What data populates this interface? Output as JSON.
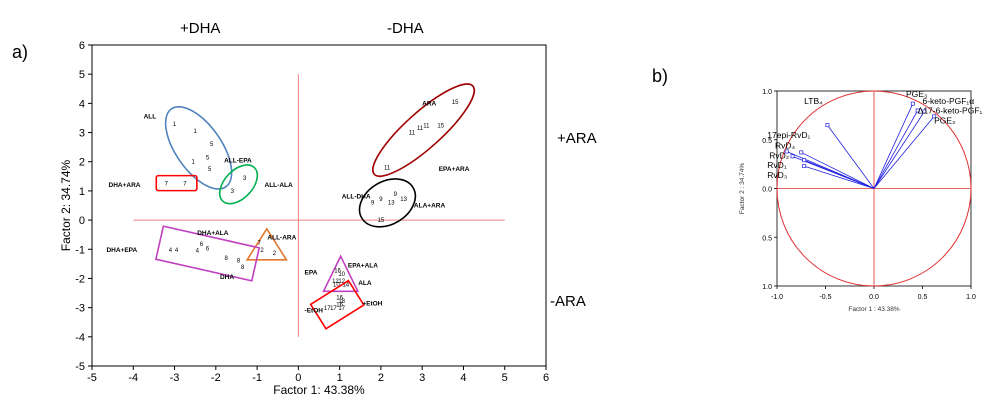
{
  "chart_data": [
    {
      "panel_label": "a)",
      "type": "scatter",
      "xlabel": "Factor 1: 43.38%",
      "ylabel": "Factor 2: 34.74%",
      "xlim": [
        -5,
        6
      ],
      "ylim": [
        -5,
        6
      ],
      "x_ticks": [
        "-5",
        "-4",
        "-3",
        "-2",
        "-1",
        "0",
        "1",
        "2",
        "3",
        "4",
        "5",
        "6"
      ],
      "y_ticks": [
        "-5",
        "-4",
        "-3",
        "-2",
        "-1",
        "0",
        "1",
        "2",
        "3",
        "4",
        "5",
        "6"
      ],
      "annotations": {
        "left_top": "+DHA",
        "right_top": "-DHA",
        "right_upper": "+ARA",
        "right_lower": "-ARA"
      },
      "groups": [
        {
          "label": "ALL",
          "label_x": -3.75,
          "label_y": 3.55,
          "color": "#4f81bd",
          "shape": "ellipse",
          "points": [
            {
              "x": -3.0,
              "y": 3.3,
              "n": "1"
            },
            {
              "x": -2.5,
              "y": 3.05,
              "n": "1"
            },
            {
              "x": -2.1,
              "y": 2.6,
              "n": "5"
            },
            {
              "x": -2.2,
              "y": 2.15,
              "n": "5"
            },
            {
              "x": -2.55,
              "y": 2.0,
              "n": "1"
            },
            {
              "x": -2.15,
              "y": 1.75,
              "n": "5"
            }
          ]
        },
        {
          "label": "ALL-EPA",
          "label_x": -1.8,
          "label_y": 2.05,
          "color": null,
          "shape": null,
          "points": []
        },
        {
          "label": "ALL-ALA",
          "label_x": -0.82,
          "label_y": 1.2,
          "color": "#00b050",
          "shape": "ellipse",
          "points": [
            {
              "x": -1.3,
              "y": 1.45,
              "n": "3"
            },
            {
              "x": -1.6,
              "y": 1.0,
              "n": "3"
            }
          ]
        },
        {
          "label": "DHA+ARA",
          "label_x": -4.6,
          "label_y": 1.2,
          "color": "#ff0000",
          "shape": "rect",
          "points": [
            {
              "x": -3.2,
              "y": 1.25,
              "n": "7"
            },
            {
              "x": -2.75,
              "y": 1.25,
              "n": "7"
            }
          ]
        },
        {
          "label": "ALL-ARA",
          "label_x": -0.75,
          "label_y": -0.6,
          "color": "#e2782d",
          "shape": "triangle",
          "points": [
            {
              "x": -0.95,
              "y": -0.78,
              "n": "7"
            },
            {
              "x": -0.88,
              "y": -1.03,
              "n": "2"
            },
            {
              "x": -0.58,
              "y": -1.12,
              "n": "2"
            }
          ]
        },
        {
          "label": "DHA+ALA",
          "label_x": -2.45,
          "label_y": -0.45,
          "color": "#c040c0",
          "shape": "rect",
          "points": [
            {
              "x": -2.35,
              "y": -0.82,
              "n": "6"
            },
            {
              "x": -2.2,
              "y": -0.98,
              "n": "6"
            },
            {
              "x": -2.45,
              "y": -1.05,
              "n": "4"
            },
            {
              "x": -2.95,
              "y": -1.02,
              "n": "4"
            },
            {
              "x": -3.1,
              "y": -1.02,
              "n": "4"
            },
            {
              "x": -1.75,
              "y": -1.3,
              "n": "8"
            },
            {
              "x": -1.45,
              "y": -1.38,
              "n": "8"
            },
            {
              "x": -1.35,
              "y": -1.6,
              "n": "8"
            }
          ]
        },
        {
          "label": "DHA+EPA",
          "label_x": -4.65,
          "label_y": -1.02,
          "color": null,
          "shape": null,
          "points": []
        },
        {
          "label": "DHA",
          "label_x": -1.9,
          "label_y": -1.95,
          "color": null,
          "shape": null,
          "points": []
        },
        {
          "label": "EPA+ALA",
          "label_x": 1.2,
          "label_y": -1.55,
          "color": "#c040c0",
          "shape": "triangle",
          "points": [
            {
              "x": 0.95,
              "y": -1.72,
              "n": "16"
            },
            {
              "x": 1.05,
              "y": -1.85,
              "n": "10"
            },
            {
              "x": 0.9,
              "y": -2.08,
              "n": "12"
            },
            {
              "x": 1.05,
              "y": -2.08,
              "n": "12"
            },
            {
              "x": 1.15,
              "y": -2.2,
              "n": "14"
            },
            {
              "x": 0.92,
              "y": -2.2,
              "n": "10"
            }
          ]
        },
        {
          "label": "EPA",
          "label_x": 0.15,
          "label_y": -1.8,
          "color": null,
          "shape": null,
          "points": []
        },
        {
          "label": "ALA",
          "label_x": 1.45,
          "label_y": -2.15,
          "color": null,
          "shape": null,
          "points": []
        },
        {
          "label": "+EtOH",
          "label_x": 1.55,
          "label_y": -2.85,
          "color": "#ff0000",
          "shape": "rect",
          "points": [
            {
              "x": 1.0,
              "y": -2.65,
              "n": "16"
            },
            {
              "x": 1.05,
              "y": -2.78,
              "n": "18"
            },
            {
              "x": 1.0,
              "y": -2.9,
              "n": "16"
            },
            {
              "x": 0.85,
              "y": -3.02,
              "n": "17"
            },
            {
              "x": 1.05,
              "y": -3.02,
              "n": "17"
            },
            {
              "x": 0.7,
              "y": -3.02,
              "n": "17"
            }
          ]
        },
        {
          "label": "-EtOH",
          "label_x": 0.15,
          "label_y": -3.1,
          "color": null,
          "shape": null,
          "points": []
        },
        {
          "label": "ARA",
          "label_x": 3.0,
          "label_y": 4.0,
          "color": "#a00000",
          "shape": "ellipse",
          "points": [
            {
              "x": 3.8,
              "y": 4.05,
              "n": "15"
            },
            {
              "x": 2.75,
              "y": 3.0,
              "n": "11"
            },
            {
              "x": 2.95,
              "y": 3.15,
              "n": "11"
            },
            {
              "x": 3.1,
              "y": 3.25,
              "n": "11"
            },
            {
              "x": 3.45,
              "y": 3.25,
              "n": "15"
            },
            {
              "x": 2.15,
              "y": 1.8,
              "n": "11"
            }
          ]
        },
        {
          "label": "EPA+ARA",
          "label_x": 3.4,
          "label_y": 1.75,
          "color": null,
          "shape": null,
          "points": []
        },
        {
          "label": "ALL-DHA",
          "label_x": 1.05,
          "label_y": 0.8,
          "color": "#000000",
          "shape": "ellipse",
          "points": [
            {
              "x": 2.35,
              "y": 0.9,
              "n": "9"
            },
            {
              "x": 2.0,
              "y": 0.72,
              "n": "9"
            },
            {
              "x": 2.55,
              "y": 0.72,
              "n": "13"
            },
            {
              "x": 1.8,
              "y": 0.6,
              "n": "9"
            },
            {
              "x": 2.25,
              "y": 0.6,
              "n": "13"
            },
            {
              "x": 2.0,
              "y": 0.0,
              "n": "15"
            }
          ]
        },
        {
          "label": "ALA+ARA",
          "label_x": 2.8,
          "label_y": 0.5,
          "color": null,
          "shape": null,
          "points": []
        }
      ]
    },
    {
      "panel_label": "b)",
      "type": "scatter",
      "xlabel": "Factor 1 : 43.38%",
      "ylabel": "Factor 2 : 34.74%",
      "xlim": [
        -1.0,
        1.0
      ],
      "ylim": [
        -1.0,
        1.0
      ],
      "x_ticks": [
        "-1.0",
        "-0.5",
        "0.0",
        "0.5",
        "1.0"
      ],
      "y_ticks": [
        "1.0",
        "0.5",
        "0.0",
        "0.5",
        "1.0"
      ],
      "variables": [
        {
          "name": "LTB₄",
          "x": -0.48,
          "y": 0.65,
          "label_x": -0.72,
          "label_y": 0.9
        },
        {
          "name": "PGE₃",
          "x": 0.4,
          "y": 0.87,
          "label_x": 0.33,
          "label_y": 0.97
        },
        {
          "name": "6-keto-PGF₁α",
          "x": 0.45,
          "y": 0.8,
          "label_x": 0.5,
          "label_y": 0.9
        },
        {
          "name": "Δ17-6-keto-PGF₁",
          "x": 0.52,
          "y": 0.79,
          "label_x": 0.45,
          "label_y": 0.8
        },
        {
          "name": "PGE₂",
          "x": 0.62,
          "y": 0.74,
          "label_x": 0.62,
          "label_y": 0.7
        },
        {
          "name": "17epi-RvD₁",
          "x": -0.9,
          "y": 0.38,
          "label_x": -1.1,
          "label_y": 0.55
        },
        {
          "name": "RvD₄",
          "x": -0.75,
          "y": 0.37,
          "label_x": -1.02,
          "label_y": 0.44
        },
        {
          "name": "RvD₂",
          "x": -0.84,
          "y": 0.33,
          "label_x": -1.08,
          "label_y": 0.34
        },
        {
          "name": "RvD₁",
          "x": -0.72,
          "y": 0.29,
          "label_x": -1.1,
          "label_y": 0.24
        },
        {
          "name": "RvD₃",
          "x": -0.72,
          "y": 0.23,
          "label_x": -1.1,
          "label_y": 0.14
        }
      ]
    }
  ]
}
